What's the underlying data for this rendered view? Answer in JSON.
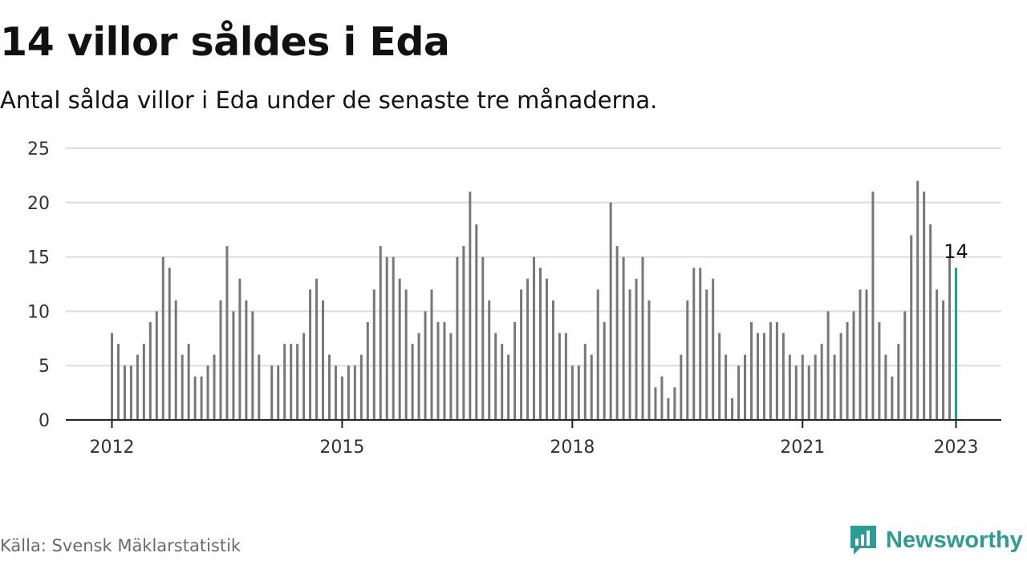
{
  "title": "14 villor såldes i Eda",
  "subtitle": "Antal sålda villor i Eda under de senaste tre månaderna.",
  "source": "Källa: Svensk Mäklarstatistik",
  "brand": {
    "name": "Newsworthy",
    "icon": "newsworthy-logo-icon"
  },
  "colors": {
    "bar": "#777777",
    "highlight": "#1a9e96",
    "grid": "#dddddd",
    "axis": "#222222"
  },
  "chart_data": {
    "type": "bar",
    "title": "14 villor såldes i Eda",
    "subtitle": "Antal sålda villor i Eda under de senaste tre månaderna.",
    "xlabel": "",
    "ylabel": "",
    "ylim": [
      0,
      25
    ],
    "yticks": [
      "0",
      "5",
      "10",
      "15",
      "20",
      "25"
    ],
    "xticks": [
      "2012",
      "2015",
      "2018",
      "2021",
      "2023"
    ],
    "grid": true,
    "start": "2012-01",
    "end": "2023-01",
    "values": [
      8,
      7,
      5,
      5,
      6,
      7,
      9,
      10,
      15,
      14,
      11,
      6,
      7,
      4,
      4,
      5,
      6,
      11,
      16,
      10,
      13,
      11,
      10,
      6,
      null,
      5,
      5,
      7,
      7,
      7,
      8,
      12,
      13,
      11,
      6,
      5,
      4,
      5,
      5,
      6,
      9,
      12,
      16,
      15,
      15,
      13,
      12,
      7,
      8,
      10,
      12,
      9,
      9,
      8,
      15,
      16,
      21,
      18,
      15,
      11,
      8,
      7,
      6,
      9,
      12,
      13,
      15,
      14,
      13,
      11,
      8,
      8,
      5,
      5,
      7,
      6,
      12,
      9,
      20,
      16,
      15,
      12,
      13,
      15,
      11,
      3,
      4,
      2,
      3,
      6,
      11,
      14,
      14,
      12,
      13,
      8,
      6,
      2,
      5,
      6,
      9,
      8,
      8,
      9,
      9,
      8,
      6,
      5,
      6,
      5,
      6,
      7,
      10,
      6,
      8,
      9,
      10,
      12,
      12,
      21,
      9,
      6,
      4,
      7,
      10,
      17,
      22,
      21,
      18,
      12,
      11,
      15,
      14
    ],
    "highlight_last": true,
    "annotation": "14"
  }
}
